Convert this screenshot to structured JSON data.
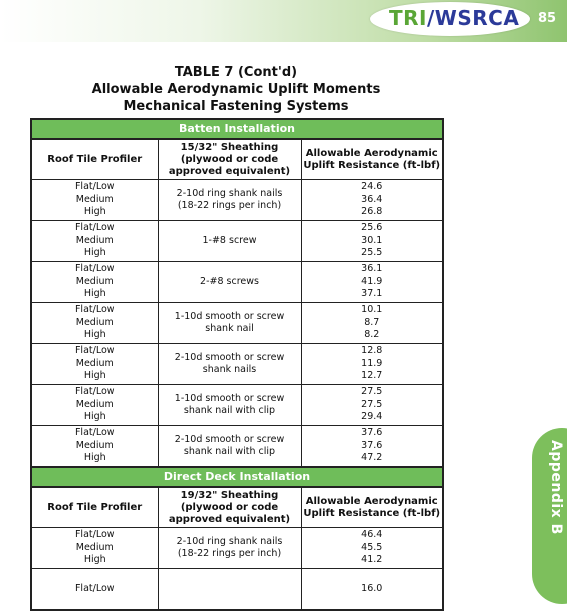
{
  "header": {
    "logo_tri": "TRI",
    "logo_rest": "/WSRCA",
    "page_number": "85"
  },
  "title": {
    "line1": "TABLE 7 (Cont'd)",
    "line2": "Allowable Aerodynamic Uplift Moments",
    "line3": "Mechanical Fastening Systems"
  },
  "sections": [
    {
      "title": "Batten Installation",
      "col1_header": "Roof Tile Profiler",
      "col2_header": "15/32\" Sheathing (plywood or code approved equivalent)",
      "col3_header": "Allowable Aerodynamic Uplift Resistance (ft-lbf)",
      "rows": [
        {
          "profiles": [
            "Flat/Low",
            "Medium",
            "High"
          ],
          "fastener": "2-10d ring shank nails (18-22 rings per inch)",
          "values": [
            "24.6",
            "36.4",
            "26.8"
          ]
        },
        {
          "profiles": [
            "Flat/Low",
            "Medium",
            "High"
          ],
          "fastener": "1-#8 screw",
          "values": [
            "25.6",
            "30.1",
            "25.5"
          ]
        },
        {
          "profiles": [
            "Flat/Low",
            "Medium",
            "High"
          ],
          "fastener": "2-#8 screws",
          "values": [
            "36.1",
            "41.9",
            "37.1"
          ]
        },
        {
          "profiles": [
            "Flat/Low",
            "Medium",
            "High"
          ],
          "fastener": "1-10d smooth or screw shank nail",
          "values": [
            "10.1",
            "8.7",
            "8.2"
          ]
        },
        {
          "profiles": [
            "Flat/Low",
            "Medium",
            "High"
          ],
          "fastener": "2-10d smooth or screw shank nails",
          "values": [
            "12.8",
            "11.9",
            "12.7"
          ]
        },
        {
          "profiles": [
            "Flat/Low",
            "Medium",
            "High"
          ],
          "fastener": "1-10d smooth or screw shank nail with clip",
          "values": [
            "27.5",
            "27.5",
            "29.4"
          ]
        },
        {
          "profiles": [
            "Flat/Low",
            "Medium",
            "High"
          ],
          "fastener": "2-10d smooth or screw shank nail with clip",
          "values": [
            "37.6",
            "37.6",
            "47.2"
          ]
        }
      ]
    },
    {
      "title": "Direct Deck Installation",
      "col1_header": "Roof Tile Profiler",
      "col2_header": "19/32\" Sheathing (plywood or code approved equivalent)",
      "col3_header": "Allowable Aerodynamic Uplift Resistance (ft-lbf)",
      "rows": [
        {
          "profiles": [
            "Flat/Low",
            "Medium",
            "High"
          ],
          "fastener": "2-10d ring shank nails (18-22 rings per inch)",
          "values": [
            "46.4",
            "45.5",
            "41.2"
          ]
        },
        {
          "profiles": [
            "Flat/Low"
          ],
          "fastener": "",
          "values": [
            "16.0"
          ]
        }
      ]
    }
  ],
  "side_tab": "Appendix B",
  "colors": {
    "green_band": "#6fbd5a",
    "logo_green": "#5aa636",
    "logo_blue": "#2b3a99"
  }
}
